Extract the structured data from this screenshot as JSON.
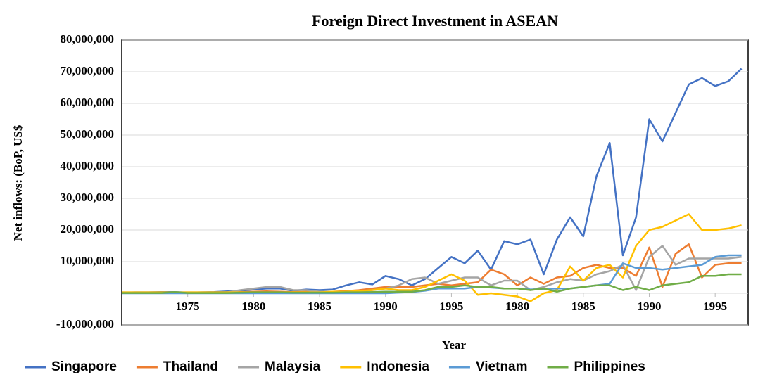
{
  "chart_data": {
    "type": "line",
    "title": "Foreign Direct Investment in ASEAN",
    "x_label": "Year",
    "y_label": "Net inflows: (BoP, US$",
    "categories": [
      null,
      null,
      null,
      null,
      null,
      "1975",
      null,
      null,
      null,
      null,
      "1980",
      null,
      null,
      null,
      null,
      "1985",
      null,
      null,
      null,
      null,
      "1990",
      null,
      null,
      null,
      null,
      "1995",
      null,
      null,
      null,
      null,
      "1980",
      null,
      null,
      null,
      null,
      "1985",
      null,
      null,
      null,
      null,
      "1990",
      null,
      null,
      null,
      null,
      "1995",
      null,
      null
    ],
    "series": [
      {
        "name": "Singapore",
        "color": "#4472c4",
        "values": [
          200000,
          300000,
          300000,
          400000,
          400000,
          200000,
          300000,
          400000,
          600000,
          800000,
          1200000,
          1500000,
          1500000,
          800000,
          1200000,
          1000000,
          1200000,
          2500000,
          3500000,
          2800000,
          5500000,
          4500000,
          2500000,
          4500000,
          8000000,
          11500000,
          9500000,
          13500000,
          7500000,
          16500000,
          15500000,
          17000000,
          6000000,
          17000000,
          24000000,
          18000000,
          37000000,
          47500000,
          12000000,
          24000000,
          55000000,
          48000000,
          57000000,
          66000000,
          68000000,
          65500000,
          67000000,
          71000000
        ]
      },
      {
        "name": "Thailand",
        "color": "#ed7d31",
        "values": [
          100000,
          100000,
          100000,
          100000,
          200000,
          100000,
          200000,
          200000,
          300000,
          400000,
          500000,
          600000,
          500000,
          400000,
          500000,
          400000,
          500000,
          700000,
          1000000,
          1500000,
          2000000,
          2000000,
          2000000,
          2500000,
          3000000,
          2500000,
          3000000,
          3500000,
          7500000,
          6000000,
          2500000,
          5000000,
          3000000,
          5000000,
          5500000,
          8000000,
          9000000,
          8000000,
          8000000,
          5500000,
          14500000,
          2000000,
          12500000,
          15500000,
          5000000,
          9000000,
          9500000,
          9500000
        ]
      },
      {
        "name": "Malaysia",
        "color": "#a5a5a5",
        "values": [
          300000,
          300000,
          300000,
          300000,
          300000,
          300000,
          300000,
          300000,
          300000,
          1000000,
          1500000,
          2000000,
          2000000,
          1000000,
          1000000,
          500000,
          500000,
          500000,
          600000,
          1000000,
          1500000,
          2500000,
          4500000,
          5000000,
          3000000,
          4000000,
          5000000,
          5000000,
          2500000,
          4000000,
          4000000,
          1000000,
          2000000,
          3500000,
          4500000,
          4000000,
          6000000,
          7000000,
          9000000,
          1000000,
          11500000,
          15000000,
          9000000,
          11000000,
          11000000,
          11000000,
          11000000,
          11500000
        ]
      },
      {
        "name": "Indonesia",
        "color": "#ffc000",
        "values": [
          300000,
          300000,
          300000,
          300000,
          300000,
          300000,
          300000,
          300000,
          300000,
          300000,
          300000,
          300000,
          300000,
          300000,
          300000,
          300000,
          500000,
          500000,
          700000,
          1000000,
          1500000,
          1000000,
          1000000,
          2000000,
          4000000,
          6000000,
          4000000,
          -500000,
          0,
          -500000,
          -1000000,
          -2500000,
          0,
          1000000,
          8500000,
          4000000,
          8000000,
          9000000,
          5000000,
          15000000,
          20000000,
          21000000,
          23000000,
          25000000,
          20000000,
          20000000,
          20500000,
          21500000
        ]
      },
      {
        "name": "Vietnam",
        "color": "#5b9bd5",
        "values": [
          0,
          0,
          0,
          0,
          0,
          0,
          0,
          0,
          0,
          0,
          0,
          0,
          0,
          0,
          0,
          0,
          0,
          0,
          0,
          0,
          0,
          200000,
          400000,
          800000,
          1500000,
          1500000,
          1500000,
          2000000,
          1800000,
          1500000,
          1500000,
          1200000,
          1300000,
          1500000,
          1500000,
          2000000,
          2500000,
          3000000,
          9500000,
          8000000,
          8000000,
          7500000,
          8000000,
          8500000,
          9000000,
          11500000,
          12000000,
          12000000
        ]
      },
      {
        "name": "Philippines",
        "color": "#70ad47",
        "values": [
          100000,
          100000,
          100000,
          100000,
          400000,
          100000,
          100000,
          100000,
          100000,
          200000,
          300000,
          300000,
          300000,
          200000,
          200000,
          200000,
          200000,
          300000,
          300000,
          400000,
          500000,
          500000,
          500000,
          1000000,
          2000000,
          2000000,
          2500000,
          2000000,
          2000000,
          1500000,
          1500000,
          1000000,
          1500000,
          500000,
          1500000,
          2000000,
          2500000,
          2500000,
          1000000,
          2000000,
          1000000,
          2500000,
          3000000,
          3500000,
          5500000,
          5500000,
          6000000,
          6000000
        ]
      }
    ],
    "ylim": [
      -10000000,
      80000000
    ],
    "yticks": [
      {
        "value": -10000000,
        "label": "-10,000,000"
      },
      {
        "value": 10000000,
        "label": "10,000,000"
      },
      {
        "value": 20000000,
        "label": "20,000,000"
      },
      {
        "value": 30000000,
        "label": "30,000,000"
      },
      {
        "value": 40000000,
        "label": "40,000,000"
      },
      {
        "value": 50000000,
        "label": "50,000,000"
      },
      {
        "value": 60000000,
        "label": "60,000,000"
      },
      {
        "value": 70000000,
        "label": "70,000,000"
      },
      {
        "value": 80000000,
        "label": "80,000,000"
      }
    ],
    "grid": true,
    "legend": "bottom"
  }
}
